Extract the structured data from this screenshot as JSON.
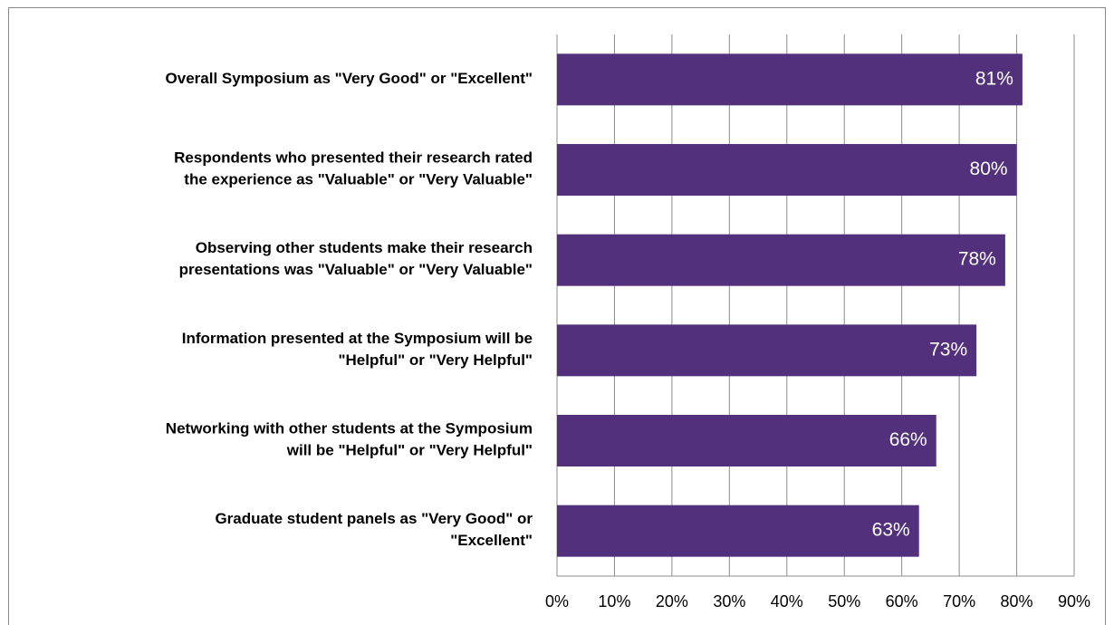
{
  "chart_data": {
    "type": "hbar",
    "categories": [
      [
        "Overall Symposium as \"Very Good\" or \"Excellent\""
      ],
      [
        "Respondents who presented their research rated",
        "the experience as \"Valuable\" or \"Very Valuable\""
      ],
      [
        "Observing other students make their research",
        "presentations was \"Valuable\" or \"Very Valuable\""
      ],
      [
        "Information presented at the Symposium will be",
        "\"Helpful\" or \"Very Helpful\""
      ],
      [
        "Networking with other students at the Symposium",
        "will be \"Helpful\" or \"Very Helpful\""
      ],
      [
        "Graduate student panels as \"Very Good\" or",
        "\"Excellent\""
      ]
    ],
    "values": [
      81,
      80,
      78,
      73,
      66,
      63
    ],
    "value_labels": [
      "81%",
      "80%",
      "78%",
      "73%",
      "66%",
      "63%"
    ],
    "color": "#52307c",
    "xlim": [
      0,
      90
    ],
    "xticks": [
      {
        "value": 0,
        "label": "0%"
      },
      {
        "value": 10,
        "label": "10%"
      },
      {
        "value": 20,
        "label": "20%"
      },
      {
        "value": 30,
        "label": "30%"
      },
      {
        "value": 40,
        "label": "40%"
      },
      {
        "value": 50,
        "label": "50%"
      },
      {
        "value": 60,
        "label": "60%"
      },
      {
        "value": 70,
        "label": "70%"
      },
      {
        "value": 80,
        "label": "80%"
      },
      {
        "value": 90,
        "label": "90%"
      }
    ],
    "grid": true
  }
}
